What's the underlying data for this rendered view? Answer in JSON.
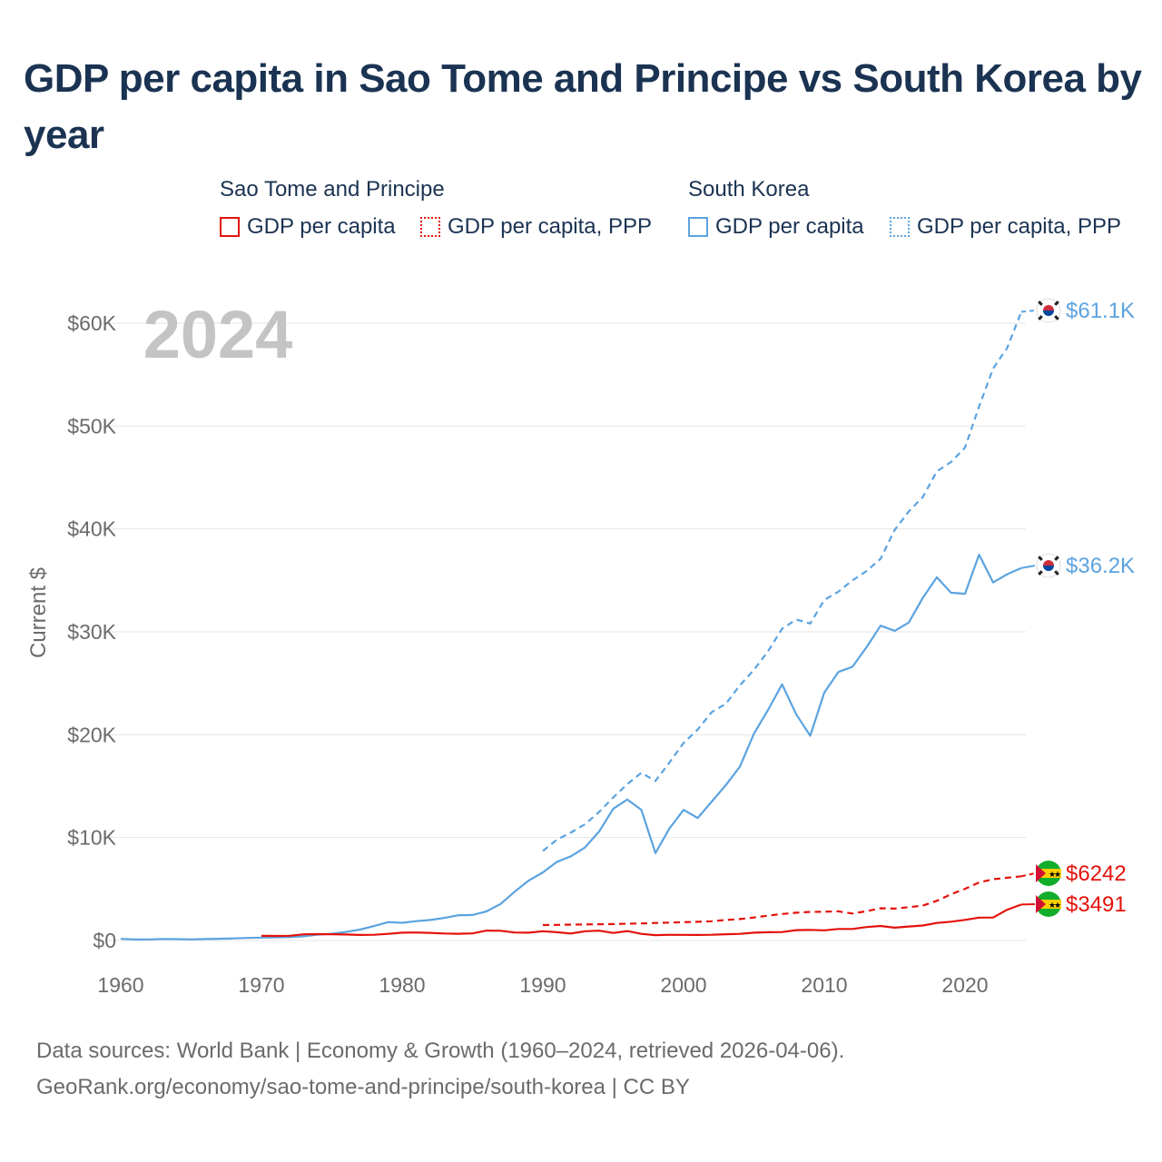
{
  "title": "GDP per capita in Sao Tome and Principe vs South Korea by year",
  "legend": {
    "groups": [
      {
        "name": "Sao Tome and Principe",
        "items": [
          "GDP per capita",
          "GDP per capita, PPP"
        ]
      },
      {
        "name": "South Korea",
        "items": [
          "GDP per capita",
          "GDP per capita, PPP"
        ]
      }
    ]
  },
  "colors": {
    "sao_tome": "#e3120b",
    "south_korea": "#5ba3e0",
    "title": "#1b3352"
  },
  "chart_data": {
    "type": "line",
    "title": "GDP per capita in Sao Tome and Principe vs South Korea by year",
    "ylabel": "Current $",
    "xlabel": "",
    "year_label": "2024",
    "xlim": [
      1960,
      2024
    ],
    "ylim": [
      0,
      62000
    ],
    "x_ticks": [
      1960,
      1970,
      1980,
      1990,
      2000,
      2010,
      2020
    ],
    "y_ticks": [
      {
        "value": 0,
        "label": "$0"
      },
      {
        "value": 10000,
        "label": "$10K"
      },
      {
        "value": 20000,
        "label": "$20K"
      },
      {
        "value": 30000,
        "label": "$30K"
      },
      {
        "value": 40000,
        "label": "$40K"
      },
      {
        "value": 50000,
        "label": "$50K"
      },
      {
        "value": 60000,
        "label": "$60K"
      }
    ],
    "series": [
      {
        "name": "South Korea GDP per capita, PPP",
        "country": "South Korea",
        "color": "#5ba3e0",
        "dash": true,
        "end_label": "$61.1K",
        "flag": "south-korea",
        "x": [
          1990,
          1991,
          1992,
          1993,
          1994,
          1995,
          1996,
          1997,
          1998,
          1999,
          2000,
          2001,
          2002,
          2003,
          2004,
          2005,
          2006,
          2007,
          2008,
          2009,
          2010,
          2011,
          2012,
          2013,
          2014,
          2015,
          2016,
          2017,
          2018,
          2019,
          2020,
          2021,
          2022,
          2023,
          2024
        ],
        "values": [
          8700,
          9800,
          10500,
          11300,
          12500,
          13900,
          15200,
          16300,
          15500,
          17300,
          19200,
          20500,
          22200,
          23000,
          24800,
          26300,
          28100,
          30300,
          31200,
          30800,
          33100,
          33900,
          35000,
          35900,
          37100,
          39900,
          41700,
          43100,
          45600,
          46500,
          47900,
          51900,
          55600,
          57600,
          61100
        ]
      },
      {
        "name": "South Korea GDP per capita",
        "country": "South Korea",
        "color": "#5ba3e0",
        "dash": false,
        "end_label": "$36.2K",
        "flag": "south-korea",
        "x": [
          1960,
          1961,
          1962,
          1963,
          1964,
          1965,
          1966,
          1967,
          1968,
          1969,
          1970,
          1971,
          1972,
          1973,
          1974,
          1975,
          1976,
          1977,
          1978,
          1979,
          1980,
          1981,
          1982,
          1983,
          1984,
          1985,
          1986,
          1987,
          1988,
          1989,
          1990,
          1991,
          1992,
          1993,
          1994,
          1995,
          1996,
          1997,
          1998,
          1999,
          2000,
          2001,
          2002,
          2003,
          2004,
          2005,
          2006,
          2007,
          2008,
          2009,
          2010,
          2011,
          2012,
          2013,
          2014,
          2015,
          2016,
          2017,
          2018,
          2019,
          2020,
          2021,
          2022,
          2023,
          2024
        ],
        "values": [
          160,
          100,
          110,
          150,
          130,
          110,
          140,
          170,
          200,
          250,
          280,
          310,
          330,
          410,
          570,
          650,
          830,
          1060,
          1400,
          1780,
          1720,
          1880,
          1990,
          2200,
          2450,
          2480,
          2830,
          3560,
          4750,
          5830,
          6620,
          7640,
          8190,
          9050,
          10600,
          12800,
          13700,
          12700,
          8500,
          10900,
          12700,
          11900,
          13500,
          15100,
          16900,
          20100,
          22400,
          24900,
          22000,
          19900,
          24100,
          26100,
          26600,
          28500,
          30600,
          30100,
          30900,
          33300,
          35300,
          33800,
          33700,
          37500,
          34800,
          35600,
          36200
        ]
      },
      {
        "name": "Sao Tome and Principe GDP per capita, PPP",
        "country": "Sao Tome and Principe",
        "color": "#e3120b",
        "dash": true,
        "end_label": "$6242",
        "flag": "sao-tome",
        "x": [
          1990,
          1991,
          1992,
          1993,
          1994,
          1995,
          1996,
          1997,
          1998,
          1999,
          2000,
          2001,
          2002,
          2003,
          2004,
          2005,
          2006,
          2007,
          2008,
          2009,
          2010,
          2011,
          2012,
          2013,
          2014,
          2015,
          2016,
          2017,
          2018,
          2019,
          2020,
          2021,
          2022,
          2023,
          2024
        ],
        "values": [
          1500,
          1520,
          1540,
          1560,
          1580,
          1600,
          1630,
          1660,
          1700,
          1740,
          1780,
          1820,
          1870,
          1990,
          2080,
          2230,
          2420,
          2580,
          2700,
          2780,
          2800,
          2830,
          2620,
          2850,
          3130,
          3100,
          3240,
          3390,
          3860,
          4490,
          5020,
          5640,
          5960,
          6100,
          6242
        ]
      },
      {
        "name": "Sao Tome and Principe GDP per capita",
        "country": "Sao Tome and Principe",
        "color": "#e3120b",
        "dash": false,
        "end_label": "$3491",
        "flag": "sao-tome",
        "x": [
          1970,
          1971,
          1972,
          1973,
          1974,
          1975,
          1976,
          1977,
          1978,
          1979,
          1980,
          1981,
          1982,
          1983,
          1984,
          1985,
          1986,
          1987,
          1988,
          1989,
          1990,
          1991,
          1992,
          1993,
          1994,
          1995,
          1996,
          1997,
          1998,
          1999,
          2000,
          2001,
          2002,
          2003,
          2004,
          2005,
          2006,
          2007,
          2008,
          2009,
          2010,
          2011,
          2012,
          2013,
          2014,
          2015,
          2016,
          2017,
          2018,
          2019,
          2020,
          2021,
          2022,
          2023,
          2024
        ],
        "values": [
          450,
          440,
          460,
          600,
          620,
          610,
          580,
          540,
          560,
          640,
          760,
          780,
          740,
          680,
          650,
          690,
          960,
          940,
          780,
          760,
          900,
          800,
          680,
          900,
          950,
          730,
          920,
          640,
          520,
          560,
          550,
          540,
          560,
          610,
          640,
          760,
          800,
          820,
          1010,
          1030,
          990,
          1120,
          1120,
          1310,
          1410,
          1240,
          1360,
          1460,
          1700,
          1830,
          2000,
          2220,
          2230,
          2990,
          3491
        ]
      }
    ]
  },
  "source": {
    "line1": "Data sources: World Bank | Economy & Growth (1960–2024, retrieved 2026-04-06).",
    "line2": "GeoRank.org/economy/sao-tome-and-principe/south-korea | CC BY"
  }
}
